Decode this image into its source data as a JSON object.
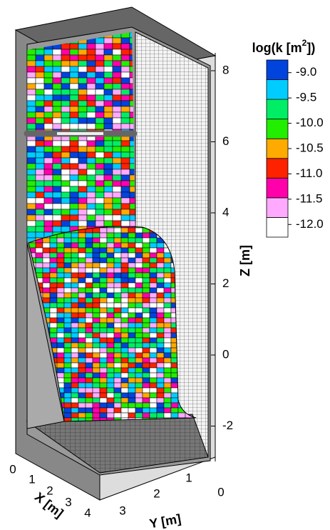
{
  "chart_data": {
    "type": "3d-block",
    "z_axis": {
      "label": "Z [m]",
      "lim": [
        -3,
        8.5
      ],
      "ticks": [
        -2,
        0,
        2,
        4,
        6,
        8
      ]
    },
    "x_axis": {
      "label": "X [m]",
      "ticks": [
        0,
        1,
        2,
        3,
        4
      ]
    },
    "y_axis": {
      "label": "Y [m]",
      "ticks": [
        3,
        2,
        1,
        0
      ]
    },
    "colorbar": {
      "title": [
        "log(k [m",
        "2",
        "])"
      ],
      "clim": [
        -12.25,
        -8.75
      ],
      "ticks": [
        {
          "value": -12,
          "label": "-12.0"
        },
        {
          "value": -11.5,
          "label": "-11.5"
        },
        {
          "value": -11,
          "label": "-11.0"
        },
        {
          "value": -10.5,
          "label": "-10.5"
        },
        {
          "value": -10,
          "label": "-10.0"
        },
        {
          "value": -9.5,
          "label": "-9.5"
        },
        {
          "value": -9,
          "label": "-9.0"
        }
      ],
      "colors": [
        "#ffffff",
        "#ffaaff",
        "#ff00aa",
        "#ff2200",
        "#ffaa00",
        "#22ee00",
        "#00ee66",
        "#00ccff",
        "#0044dd"
      ]
    }
  }
}
